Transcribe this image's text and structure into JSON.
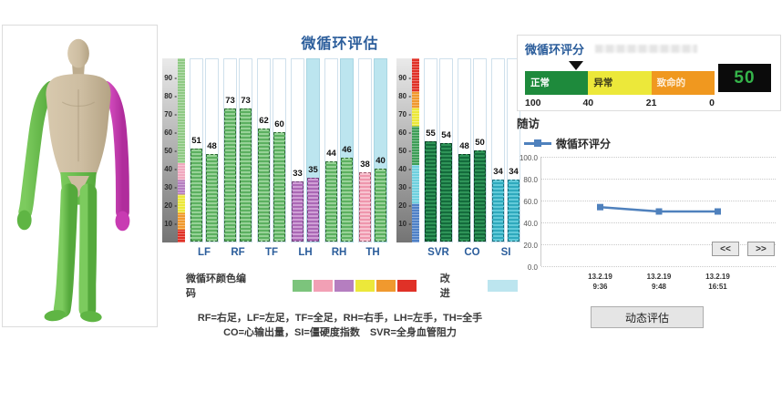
{
  "body_model": {
    "skin": "#cfc0a6",
    "skin_dark": "#b3a383",
    "limb_green": "#6abf4e",
    "limb_green_dark": "#4ea636",
    "limb_magenta": "#d243bd",
    "limb_magenta_dark": "#b22f9e"
  },
  "bar_chart": {
    "title": "微循环评估",
    "y_ticks": [
      90,
      80,
      70,
      60,
      50,
      40,
      30,
      20,
      10
    ],
    "improve_fill": "#bce5ef",
    "palette": {
      "green": {
        "light": "#97d297",
        "dark": "#5cb060",
        "border": "#2f6b35"
      },
      "purple": {
        "light": "#cf9fd6",
        "dark": "#aa68b5",
        "border": "#71437a"
      },
      "pink": {
        "light": "#f7c3d0",
        "dark": "#ef96ad",
        "border": "#a05a6e"
      },
      "darkgreen": {
        "light": "#2f9458",
        "dark": "#146b3c",
        "border": "#0a4023"
      },
      "cyan": {
        "light": "#62cad9",
        "dark": "#2fa9bd",
        "border": "#19707f"
      }
    },
    "sections": [
      {
        "strip": [
          {
            "c": "#8fca84",
            "to": 57
          },
          {
            "c": "#f0a8bf",
            "to": 66
          },
          {
            "c": "#b57ec0",
            "to": 74
          },
          {
            "c": "#ece83a",
            "to": 84
          },
          {
            "c": "#f0992e",
            "to": 93
          },
          {
            "c": "#e03127",
            "to": 100
          }
        ],
        "groups": [
          {
            "label": "LF",
            "bars": [
              {
                "v": 51,
                "color": "green",
                "improved": false
              },
              {
                "v": 48,
                "color": "green",
                "improved": false
              }
            ]
          },
          {
            "label": "RF",
            "bars": [
              {
                "v": 73,
                "color": "green",
                "improved": false
              },
              {
                "v": 73,
                "color": "green",
                "improved": false
              }
            ]
          },
          {
            "label": "TF",
            "bars": [
              {
                "v": 62,
                "color": "green",
                "improved": false
              },
              {
                "v": 60,
                "color": "green",
                "improved": false
              }
            ]
          },
          {
            "label": "LH",
            "bars": [
              {
                "v": 33,
                "color": "purple",
                "improved": false
              },
              {
                "v": 35,
                "color": "purple",
                "improved": true
              }
            ]
          },
          {
            "label": "RH",
            "bars": [
              {
                "v": 44,
                "color": "green",
                "improved": false
              },
              {
                "v": 46,
                "color": "green",
                "improved": true
              }
            ]
          },
          {
            "label": "TH",
            "bars": [
              {
                "v": 38,
                "color": "pink",
                "improved": false
              },
              {
                "v": 40,
                "color": "green",
                "improved": true
              }
            ]
          }
        ]
      },
      {
        "strip": [
          {
            "c": "#e03127",
            "to": 18
          },
          {
            "c": "#f0992e",
            "to": 27
          },
          {
            "c": "#ece83a",
            "to": 37
          },
          {
            "c": "#3e9e57",
            "to": 58
          },
          {
            "c": "#6fd0de",
            "to": 79
          },
          {
            "c": "#4f81c7",
            "to": 100
          }
        ],
        "groups": [
          {
            "label": "SVR",
            "bars": [
              {
                "v": 55,
                "color": "darkgreen",
                "improved": false
              },
              {
                "v": 54,
                "color": "darkgreen",
                "improved": false
              }
            ]
          },
          {
            "label": "CO",
            "bars": [
              {
                "v": 48,
                "color": "darkgreen",
                "improved": false
              },
              {
                "v": 50,
                "color": "darkgreen",
                "improved": false
              }
            ]
          },
          {
            "label": "SI",
            "bars": [
              {
                "v": 34,
                "color": "cyan",
                "improved": false
              },
              {
                "v": 34,
                "color": "cyan",
                "improved": false
              }
            ]
          }
        ]
      }
    ]
  },
  "color_legend": {
    "label": "微循环颜色编码",
    "swatches": [
      "#7cc47c",
      "#f2a0b5",
      "#b57ec0",
      "#ece83a",
      "#f0992e",
      "#e03127"
    ],
    "improve_label": "改进",
    "improve_color": "#bce5ef"
  },
  "captions": [
    "RF=右足，LF=左足，TF=全足，RH=右手，LH=左手，TH=全手",
    "CO=心输出量，SI=僵硬度指数　SVR=全身血管阻力"
  ],
  "score_panel": {
    "title": "微循环评分",
    "segments": [
      {
        "label": "正常",
        "color": "#1e8a3c",
        "text": "#ffffff"
      },
      {
        "label": "异常",
        "color": "#ece83a",
        "text": "#3a3a1a"
      },
      {
        "label": "致命的",
        "color": "#f0981f",
        "text": "#fdeeda"
      }
    ],
    "ticks": [
      "100",
      "40",
      "21",
      "0"
    ],
    "marker_percent": 27,
    "score": "50",
    "score_color": "#35b44a"
  },
  "followup": {
    "title": "随访",
    "legend": "微循环评分",
    "line_color": "#4f81bd",
    "y_ticks": [
      "100.0",
      "80.0",
      "60.0",
      "40.0",
      "20.0",
      "0.0"
    ],
    "points": [
      {
        "date": "13.2.19",
        "time": "9:36",
        "value": 54
      },
      {
        "date": "13.2.19",
        "time": "9:48",
        "value": 50
      },
      {
        "date": "13.2.19",
        "time": "16:51",
        "value": 50
      }
    ],
    "nav_prev": "<<",
    "nav_next": ">>"
  },
  "action_button": {
    "label": "动态评估"
  },
  "chart_data": [
    {
      "type": "bar",
      "title": "微循环评估",
      "categories": [
        "LF",
        "RF",
        "TF",
        "LH",
        "RH",
        "TH",
        "SVR",
        "CO",
        "SI"
      ],
      "series": [
        {
          "name": "bar_1",
          "values": [
            51,
            73,
            62,
            33,
            44,
            38,
            55,
            48,
            34
          ]
        },
        {
          "name": "bar_2",
          "values": [
            48,
            73,
            60,
            35,
            46,
            40,
            54,
            50,
            34
          ]
        }
      ],
      "ylim": [
        0,
        100
      ],
      "y_ticks": [
        10,
        20,
        30,
        40,
        50,
        60,
        70,
        80,
        90
      ],
      "improved_highlight": [
        "LH",
        "RH",
        "TH"
      ],
      "xlabel": "",
      "ylabel": ""
    },
    {
      "type": "line",
      "title": "随访",
      "x": [
        "13.2.19 9:36",
        "13.2.19 9:48",
        "13.2.19 16:51"
      ],
      "series": [
        {
          "name": "微循环评分",
          "values": [
            54,
            50,
            50
          ]
        }
      ],
      "ylim": [
        0,
        100
      ],
      "y_ticks": [
        0,
        20,
        40,
        60,
        80,
        100
      ],
      "grid": true,
      "legend_position": "top-left"
    }
  ]
}
